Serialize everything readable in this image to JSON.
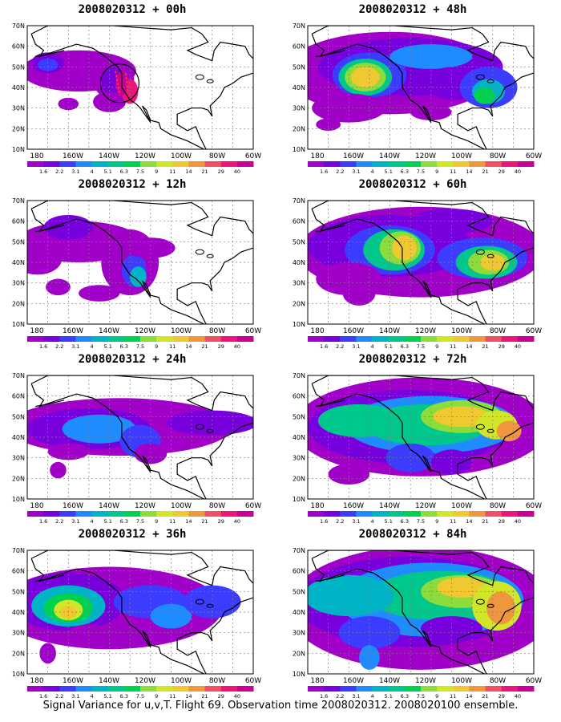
{
  "figure": {
    "caption": "Signal Variance for u,v,T. Flight 69. Observation time 2008020312. 2008020100 ensemble.",
    "lat_labels": [
      "70N",
      "60N",
      "50N",
      "40N",
      "30N",
      "20N",
      "10N"
    ],
    "lon_labels": [
      "180",
      "160W",
      "140W",
      "120W",
      "100W",
      "80W",
      "60W"
    ],
    "colorbar": {
      "levels": [
        "1.6",
        "2.2",
        "3.1",
        "4",
        "5.1",
        "6.3",
        "7.5",
        "9",
        "11",
        "14",
        "21",
        "29",
        "40"
      ],
      "colors": [
        "#a000c8",
        "#7800dc",
        "#3c3cff",
        "#1e8cff",
        "#00b4c8",
        "#00c88c",
        "#00d250",
        "#8cdc3c",
        "#d2e628",
        "#f0c832",
        "#f0963c",
        "#f05064",
        "#f0147a",
        "#c80096"
      ]
    },
    "colors": {
      "land_outline": "#000000",
      "grid": "#808080",
      "background": "#ffffff"
    }
  },
  "panels": [
    {
      "title": "2008020312 + 00h",
      "col": 0,
      "row": 0,
      "highlight": true
    },
    {
      "title": "2008020312 + 48h",
      "col": 1,
      "row": 0,
      "highlight": false
    },
    {
      "title": "2008020312 + 12h",
      "col": 0,
      "row": 1,
      "highlight": false
    },
    {
      "title": "2008020312 + 60h",
      "col": 1,
      "row": 1,
      "highlight": false
    },
    {
      "title": "2008020312 + 24h",
      "col": 0,
      "row": 2,
      "highlight": false
    },
    {
      "title": "2008020312 + 72h",
      "col": 1,
      "row": 2,
      "highlight": false
    },
    {
      "title": "2008020312 + 36h",
      "col": 0,
      "row": 3,
      "highlight": false
    },
    {
      "title": "2008020312 + 84h",
      "col": 1,
      "row": 3,
      "highlight": false
    }
  ]
}
